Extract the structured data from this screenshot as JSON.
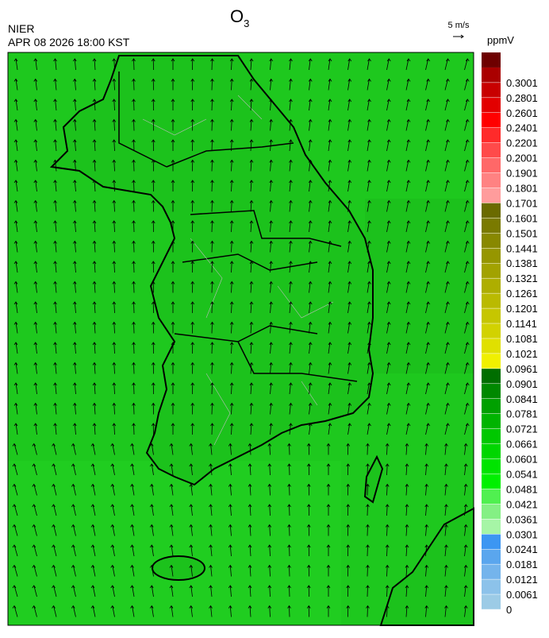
{
  "header": {
    "title": "O",
    "title_subscript": "3",
    "agency": "NIER",
    "datetime": "APR 08 2026 18:00 KST",
    "wind_reference": "5 m/s"
  },
  "colorbar": {
    "unit": "ppmV",
    "ticks": [
      0,
      0.0061,
      0.0121,
      0.0181,
      0.0241,
      0.0301,
      0.0361,
      0.0421,
      0.0481,
      0.0541,
      0.0601,
      0.0661,
      0.0721,
      0.0781,
      0.0841,
      0.0901,
      0.0961,
      0.1021,
      0.1081,
      0.1141,
      0.1201,
      0.1261,
      0.1321,
      0.1381,
      0.1441,
      0.1501,
      0.1601,
      0.1701,
      0.1801,
      0.1901,
      0.2001,
      0.2201,
      0.2401,
      0.2601,
      0.2801,
      0.3001
    ],
    "colors": [
      "#9ccbe6",
      "#8cc2ea",
      "#74b4ec",
      "#5aa6ee",
      "#3c96f2",
      "#a6f5a6",
      "#84f084",
      "#50f050",
      "#00f000",
      "#00e400",
      "#00d600",
      "#00c800",
      "#00b400",
      "#00a000",
      "#008800",
      "#006e00",
      "#f0f000",
      "#e0e000",
      "#d2d200",
      "#c6c600",
      "#baba00",
      "#aeae00",
      "#a2a200",
      "#969600",
      "#888800",
      "#7a7a00",
      "#6a6a00",
      "#ff9c9c",
      "#ff8282",
      "#ff6868",
      "#ff4a4a",
      "#ff2a2a",
      "#ff0000",
      "#e20000",
      "#c80000",
      "#aa0000",
      "#6e0000"
    ]
  }
}
